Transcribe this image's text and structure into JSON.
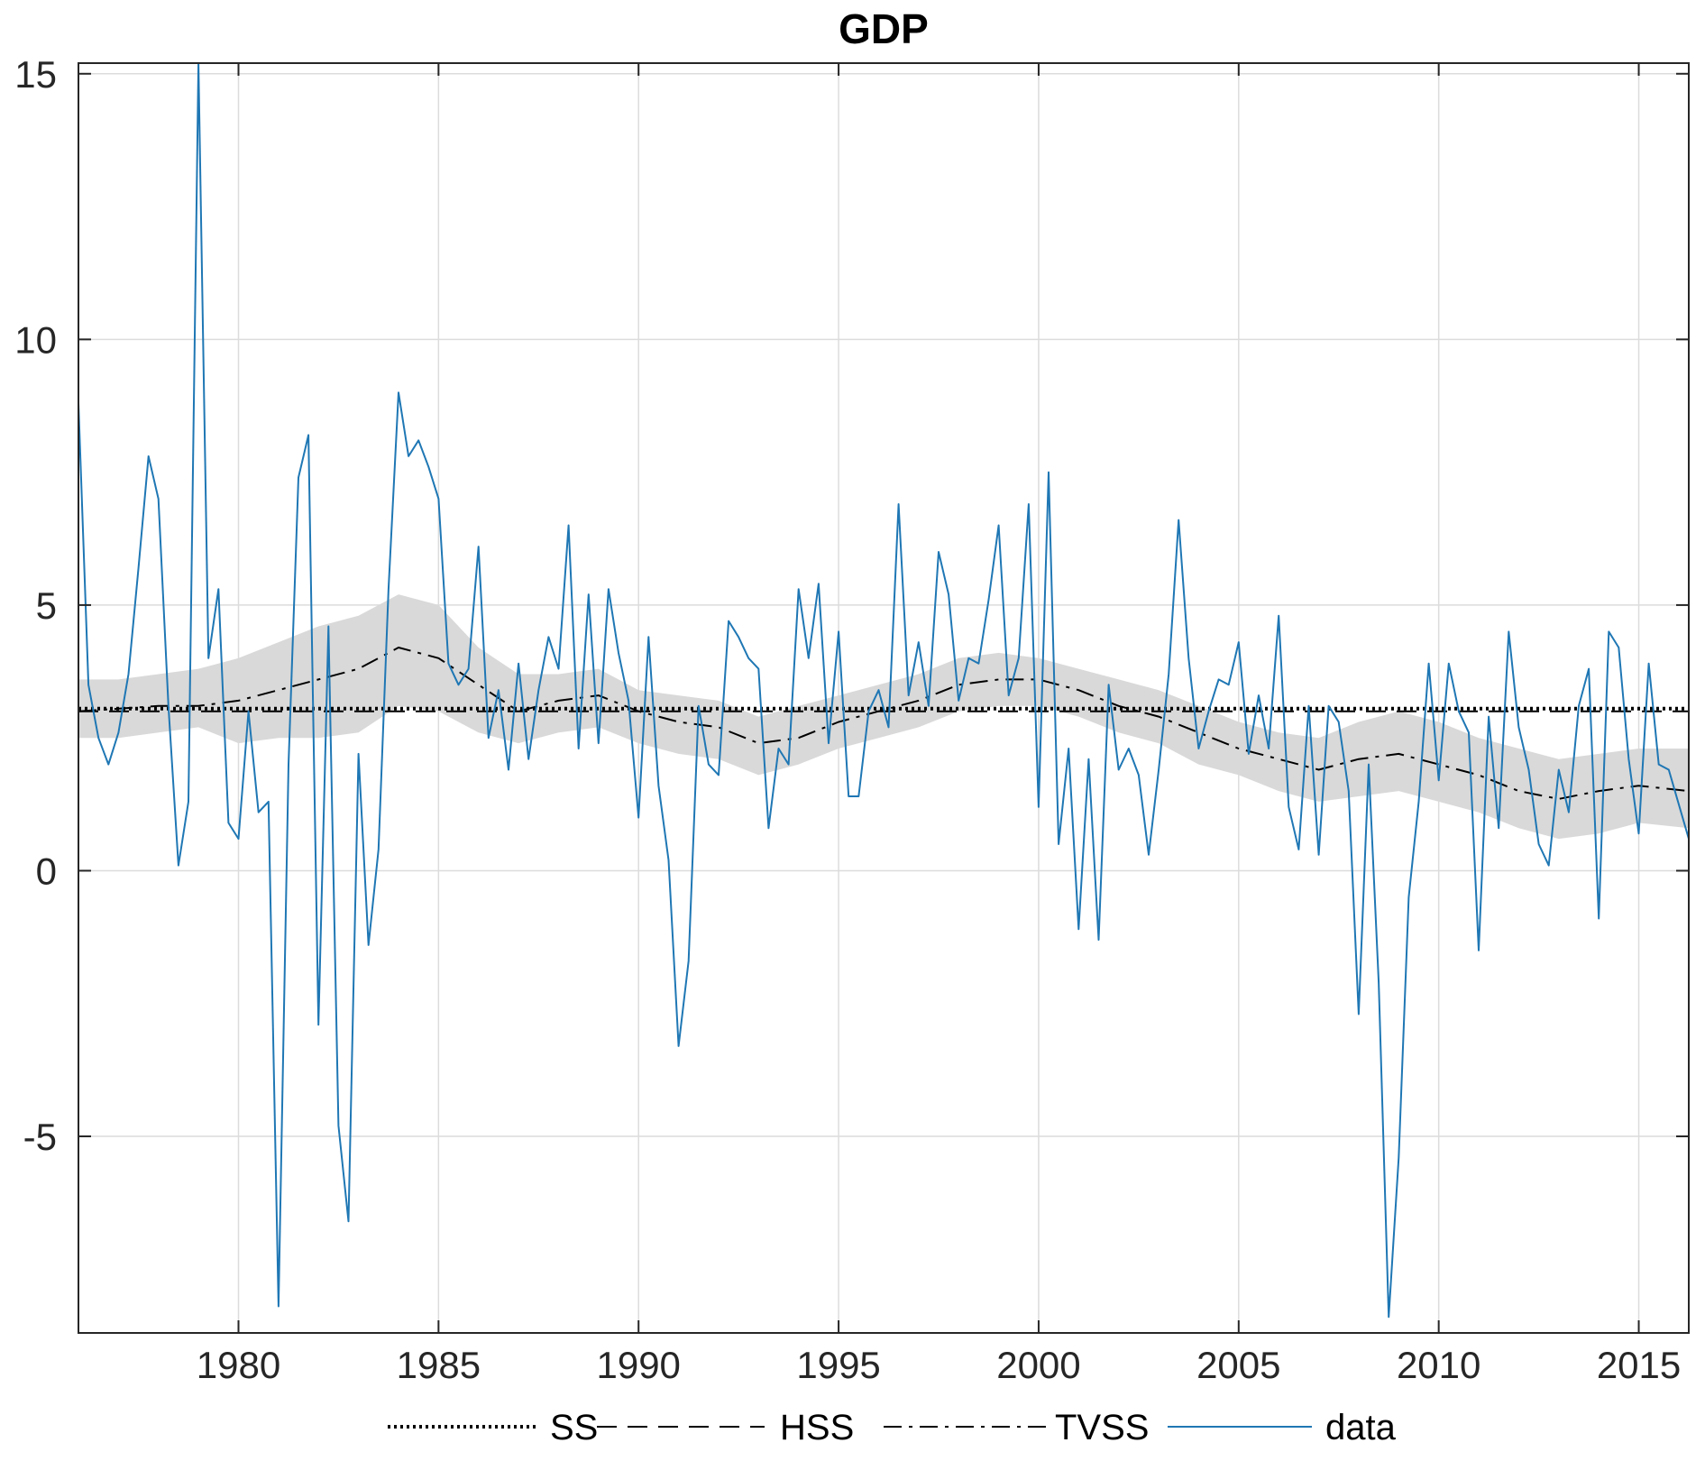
{
  "chart_data": {
    "type": "line",
    "title": "GDP",
    "xlabel": "",
    "ylabel": "",
    "xlim": [
      1976,
      2016.25
    ],
    "ylim": [
      -8.7,
      15.2
    ],
    "grid": true,
    "legend_placement": "bottom",
    "x_ticks": [
      1980,
      1985,
      1990,
      1995,
      2000,
      2005,
      2010,
      2015
    ],
    "x_tick_labels": [
      "1980",
      "1985",
      "1990",
      "1995",
      "2000",
      "2005",
      "2010",
      "2015"
    ],
    "y_ticks": [
      -5,
      0,
      5,
      10,
      15
    ],
    "y_tick_labels": [
      "-5",
      "0",
      "5",
      "10",
      "15"
    ],
    "series": [
      {
        "name": "SS",
        "style": "dotted",
        "color": "#000000",
        "points": [
          [
            1976,
            3.05
          ],
          [
            2016.25,
            3.05
          ]
        ]
      },
      {
        "name": "HSS",
        "style": "dashed",
        "color": "#000000",
        "points": [
          [
            1976,
            3.0
          ],
          [
            2016.25,
            3.0
          ]
        ]
      },
      {
        "name": "TVSS",
        "style": "dashdot",
        "color": "#000000",
        "points": [
          [
            1976,
            3.0
          ],
          [
            1977,
            3.05
          ],
          [
            1978,
            3.1
          ],
          [
            1979,
            3.1
          ],
          [
            1980,
            3.2
          ],
          [
            1981,
            3.4
          ],
          [
            1982,
            3.6
          ],
          [
            1983,
            3.8
          ],
          [
            1984,
            4.2
          ],
          [
            1985,
            4.0
          ],
          [
            1986,
            3.5
          ],
          [
            1987,
            3.0
          ],
          [
            1988,
            3.2
          ],
          [
            1989,
            3.3
          ],
          [
            1990,
            3.0
          ],
          [
            1991,
            2.8
          ],
          [
            1992,
            2.7
          ],
          [
            1993,
            2.4
          ],
          [
            1994,
            2.5
          ],
          [
            1995,
            2.8
          ],
          [
            1996,
            3.0
          ],
          [
            1997,
            3.2
          ],
          [
            1998,
            3.5
          ],
          [
            1999,
            3.6
          ],
          [
            2000,
            3.6
          ],
          [
            2001,
            3.4
          ],
          [
            2002,
            3.1
          ],
          [
            2003,
            2.9
          ],
          [
            2004,
            2.6
          ],
          [
            2005,
            2.3
          ],
          [
            2006,
            2.1
          ],
          [
            2007,
            1.9
          ],
          [
            2008,
            2.1
          ],
          [
            2009,
            2.2
          ],
          [
            2010,
            2.0
          ],
          [
            2011,
            1.8
          ],
          [
            2012,
            1.5
          ],
          [
            2013,
            1.35
          ],
          [
            2014,
            1.5
          ],
          [
            2015,
            1.6
          ],
          [
            2016.25,
            1.5
          ]
        ]
      },
      {
        "name": "data",
        "style": "solid",
        "color": "#1f77b4",
        "points": [
          [
            1976.0,
            8.8
          ],
          [
            1976.25,
            3.5
          ],
          [
            1976.5,
            2.5
          ],
          [
            1976.75,
            2.0
          ],
          [
            1977.0,
            2.6
          ],
          [
            1977.25,
            3.7
          ],
          [
            1977.5,
            5.7
          ],
          [
            1977.75,
            7.8
          ],
          [
            1978.0,
            7.0
          ],
          [
            1978.25,
            3.1
          ],
          [
            1978.5,
            0.1
          ],
          [
            1978.75,
            1.3
          ],
          [
            1979.0,
            15.2
          ],
          [
            1979.25,
            4.0
          ],
          [
            1979.5,
            5.3
          ],
          [
            1979.75,
            0.9
          ],
          [
            1980.0,
            0.6
          ],
          [
            1980.25,
            3.0
          ],
          [
            1980.5,
            1.1
          ],
          [
            1980.75,
            1.3
          ],
          [
            1981.0,
            -8.2
          ],
          [
            1981.25,
            2.0
          ],
          [
            1981.5,
            7.4
          ],
          [
            1981.75,
            8.2
          ],
          [
            1982.0,
            -2.9
          ],
          [
            1982.25,
            4.6
          ],
          [
            1982.5,
            -4.8
          ],
          [
            1982.75,
            -6.6
          ],
          [
            1983.0,
            2.2
          ],
          [
            1983.25,
            -1.4
          ],
          [
            1983.5,
            0.4
          ],
          [
            1983.75,
            5.3
          ],
          [
            1984.0,
            9.0
          ],
          [
            1984.25,
            7.8
          ],
          [
            1984.5,
            8.1
          ],
          [
            1984.75,
            7.6
          ],
          [
            1985.0,
            7.0
          ],
          [
            1985.25,
            3.9
          ],
          [
            1985.5,
            3.5
          ],
          [
            1985.75,
            3.8
          ],
          [
            1986.0,
            6.1
          ],
          [
            1986.25,
            2.5
          ],
          [
            1986.5,
            3.4
          ],
          [
            1986.75,
            1.9
          ],
          [
            1987.0,
            3.9
          ],
          [
            1987.25,
            2.1
          ],
          [
            1987.5,
            3.4
          ],
          [
            1987.75,
            4.4
          ],
          [
            1988.0,
            3.8
          ],
          [
            1988.25,
            6.5
          ],
          [
            1988.5,
            2.3
          ],
          [
            1988.75,
            5.2
          ],
          [
            1989.0,
            2.4
          ],
          [
            1989.25,
            5.3
          ],
          [
            1989.5,
            4.1
          ],
          [
            1989.75,
            3.2
          ],
          [
            1990.0,
            1.0
          ],
          [
            1990.25,
            4.4
          ],
          [
            1990.5,
            1.6
          ],
          [
            1990.75,
            0.2
          ],
          [
            1991.0,
            -3.3
          ],
          [
            1991.25,
            -1.7
          ],
          [
            1991.5,
            3.1
          ],
          [
            1991.75,
            2.0
          ],
          [
            1992.0,
            1.8
          ],
          [
            1992.25,
            4.7
          ],
          [
            1992.5,
            4.4
          ],
          [
            1992.75,
            4.0
          ],
          [
            1993.0,
            3.8
          ],
          [
            1993.25,
            0.8
          ],
          [
            1993.5,
            2.3
          ],
          [
            1993.75,
            2.0
          ],
          [
            1994.0,
            5.3
          ],
          [
            1994.25,
            4.0
          ],
          [
            1994.5,
            5.4
          ],
          [
            1994.75,
            2.4
          ],
          [
            1995.0,
            4.5
          ],
          [
            1995.25,
            1.4
          ],
          [
            1995.5,
            1.4
          ],
          [
            1995.75,
            3.0
          ],
          [
            1996.0,
            3.4
          ],
          [
            1996.25,
            2.7
          ],
          [
            1996.5,
            6.9
          ],
          [
            1996.75,
            3.3
          ],
          [
            1997.0,
            4.3
          ],
          [
            1997.25,
            3.1
          ],
          [
            1997.5,
            6.0
          ],
          [
            1997.75,
            5.2
          ],
          [
            1998.0,
            3.2
          ],
          [
            1998.25,
            4.0
          ],
          [
            1998.5,
            3.9
          ],
          [
            1998.75,
            5.1
          ],
          [
            1999.0,
            6.5
          ],
          [
            1999.25,
            3.3
          ],
          [
            1999.5,
            4.0
          ],
          [
            1999.75,
            6.9
          ],
          [
            2000.0,
            1.2
          ],
          [
            2000.25,
            7.5
          ],
          [
            2000.5,
            0.5
          ],
          [
            2000.75,
            2.3
          ],
          [
            2001.0,
            -1.1
          ],
          [
            2001.25,
            2.1
          ],
          [
            2001.5,
            -1.3
          ],
          [
            2001.75,
            3.5
          ],
          [
            2002.0,
            1.9
          ],
          [
            2002.25,
            2.3
          ],
          [
            2002.5,
            1.8
          ],
          [
            2002.75,
            0.3
          ],
          [
            2003.0,
            1.9
          ],
          [
            2003.25,
            3.7
          ],
          [
            2003.5,
            6.6
          ],
          [
            2003.75,
            4.0
          ],
          [
            2004.0,
            2.3
          ],
          [
            2004.25,
            3.0
          ],
          [
            2004.5,
            3.6
          ],
          [
            2004.75,
            3.5
          ],
          [
            2005.0,
            4.3
          ],
          [
            2005.25,
            2.2
          ],
          [
            2005.5,
            3.3
          ],
          [
            2005.75,
            2.3
          ],
          [
            2006.0,
            4.8
          ],
          [
            2006.25,
            1.2
          ],
          [
            2006.5,
            0.4
          ],
          [
            2006.75,
            3.1
          ],
          [
            2007.0,
            0.3
          ],
          [
            2007.25,
            3.1
          ],
          [
            2007.5,
            2.8
          ],
          [
            2007.75,
            1.5
          ],
          [
            2008.0,
            -2.7
          ],
          [
            2008.25,
            2.0
          ],
          [
            2008.5,
            -2.1
          ],
          [
            2008.75,
            -8.4
          ],
          [
            2009.0,
            -5.4
          ],
          [
            2009.25,
            -0.5
          ],
          [
            2009.5,
            1.3
          ],
          [
            2009.75,
            3.9
          ],
          [
            2010.0,
            1.7
          ],
          [
            2010.25,
            3.9
          ],
          [
            2010.5,
            3.0
          ],
          [
            2010.75,
            2.6
          ],
          [
            2011.0,
            -1.5
          ],
          [
            2011.25,
            2.9
          ],
          [
            2011.5,
            0.8
          ],
          [
            2011.75,
            4.5
          ],
          [
            2012.0,
            2.7
          ],
          [
            2012.25,
            1.9
          ],
          [
            2012.5,
            0.5
          ],
          [
            2012.75,
            0.1
          ],
          [
            2013.0,
            1.9
          ],
          [
            2013.25,
            1.1
          ],
          [
            2013.5,
            3.1
          ],
          [
            2013.75,
            3.8
          ],
          [
            2014.0,
            -0.9
          ],
          [
            2014.25,
            4.5
          ],
          [
            2014.5,
            4.2
          ],
          [
            2014.75,
            2.1
          ],
          [
            2015.0,
            0.7
          ],
          [
            2015.25,
            3.9
          ],
          [
            2015.5,
            2.0
          ],
          [
            2015.75,
            1.9
          ],
          [
            2016.25,
            0.6
          ]
        ]
      }
    ],
    "confidence_band": {
      "color": "#d9d9d9",
      "points": [
        [
          1976,
          2.5,
          3.6
        ],
        [
          1977,
          2.5,
          3.6
        ],
        [
          1978,
          2.6,
          3.7
        ],
        [
          1979,
          2.7,
          3.8
        ],
        [
          1980,
          2.4,
          4.0
        ],
        [
          1981,
          2.5,
          4.3
        ],
        [
          1982,
          2.5,
          4.6
        ],
        [
          1983,
          2.6,
          4.8
        ],
        [
          1984,
          3.1,
          5.2
        ],
        [
          1985,
          3.0,
          5.0
        ],
        [
          1986,
          2.6,
          4.2
        ],
        [
          1987,
          2.4,
          3.7
        ],
        [
          1988,
          2.6,
          3.7
        ],
        [
          1989,
          2.7,
          3.8
        ],
        [
          1990,
          2.4,
          3.4
        ],
        [
          1991,
          2.2,
          3.3
        ],
        [
          1992,
          2.1,
          3.2
        ],
        [
          1993,
          1.8,
          2.9
        ],
        [
          1994,
          2.0,
          3.1
        ],
        [
          1995,
          2.3,
          3.3
        ],
        [
          1996,
          2.5,
          3.5
        ],
        [
          1997,
          2.7,
          3.7
        ],
        [
          1998,
          3.0,
          4.0
        ],
        [
          1999,
          3.1,
          4.1
        ],
        [
          2000,
          3.1,
          4.0
        ],
        [
          2001,
          2.9,
          3.8
        ],
        [
          2002,
          2.6,
          3.6
        ],
        [
          2003,
          2.4,
          3.4
        ],
        [
          2004,
          2.0,
          3.1
        ],
        [
          2005,
          1.8,
          2.8
        ],
        [
          2006,
          1.5,
          2.6
        ],
        [
          2007,
          1.3,
          2.5
        ],
        [
          2008,
          1.4,
          2.8
        ],
        [
          2009,
          1.5,
          3.0
        ],
        [
          2010,
          1.3,
          2.8
        ],
        [
          2011,
          1.1,
          2.5
        ],
        [
          2012,
          0.8,
          2.3
        ],
        [
          2013,
          0.6,
          2.1
        ],
        [
          2014,
          0.7,
          2.2
        ],
        [
          2015,
          0.9,
          2.3
        ],
        [
          2016.25,
          0.8,
          2.3
        ]
      ]
    }
  }
}
